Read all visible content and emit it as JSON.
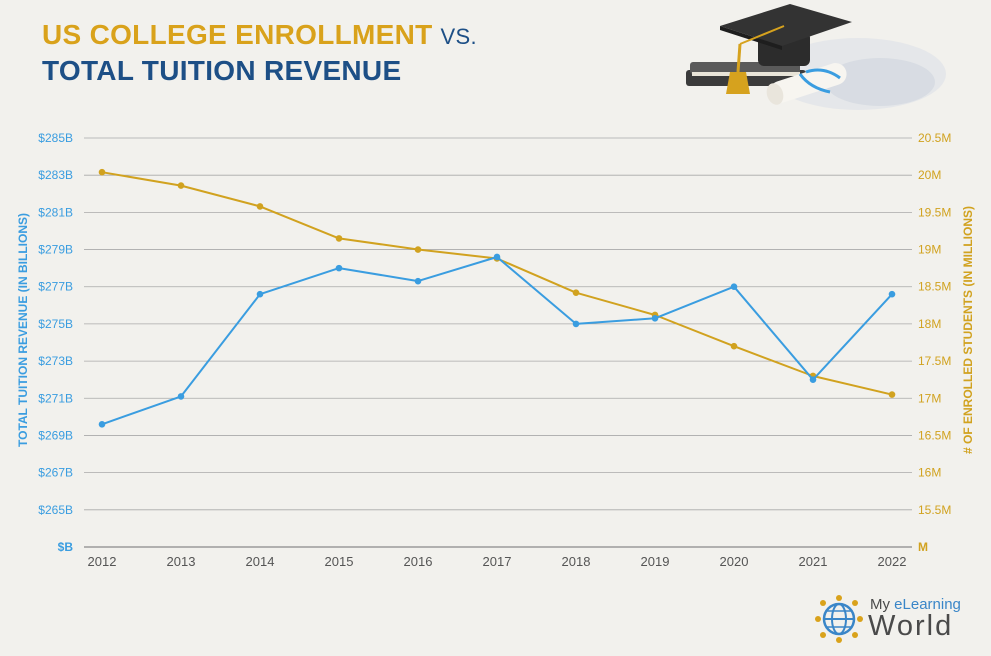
{
  "title": {
    "line1": "US COLLEGE ENROLLMENT",
    "vs": "VS.",
    "line2": "TOTAL TUITION REVENUE"
  },
  "logo": {
    "prefix": "My ",
    "accent": "eLearning",
    "word": "World"
  },
  "colors": {
    "revenue": "#3a9de0",
    "enrollment": "#d1a21f",
    "title_gold": "#d9a21b",
    "title_blue": "#1d4f86"
  },
  "chart_data": {
    "type": "line",
    "x": [
      "2012",
      "2013",
      "2014",
      "2015",
      "2016",
      "2017",
      "2018",
      "2019",
      "2020",
      "2021",
      "2022"
    ],
    "left_axis": {
      "label": "TOTAL TUITION REVENUE (IN BILLIONS)",
      "ticks": [
        "$B",
        "$265B",
        "$267B",
        "$269B",
        "$271B",
        "$273B",
        "$275B",
        "$277B",
        "$279B",
        "$281B",
        "$283B",
        "$285B"
      ],
      "range": [
        263,
        285
      ]
    },
    "right_axis": {
      "label": "# OF ENROLLED STUDENTS (IN MILLIONS)",
      "ticks": [
        "M",
        "15.5M",
        "16M",
        "16.5M",
        "17M",
        "17.5M",
        "18M",
        "18.5M",
        "19M",
        "19.5M",
        "20M",
        "20.5M"
      ],
      "range": [
        15,
        20.5
      ]
    },
    "series": [
      {
        "axis": "left",
        "values": [
          269.6,
          271.1,
          276.6,
          278.0,
          277.3,
          278.6,
          275.0,
          275.3,
          277.0,
          272.0,
          276.6
        ]
      },
      {
        "axis": "right",
        "values": [
          20.04,
          19.86,
          19.58,
          19.15,
          19.0,
          18.88,
          18.42,
          18.12,
          17.7,
          17.3,
          17.05
        ]
      }
    ],
    "grid": true
  }
}
